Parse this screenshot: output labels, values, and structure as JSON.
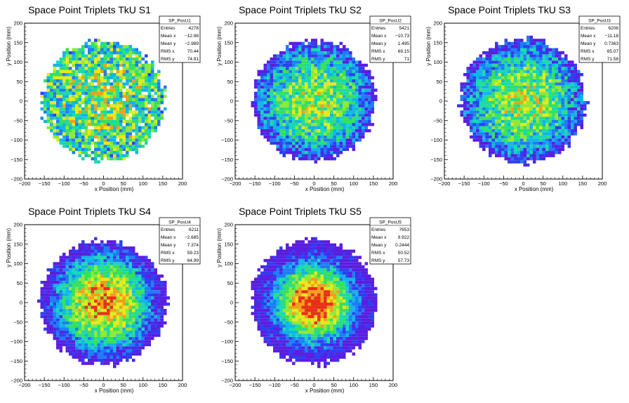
{
  "chart_data": [
    {
      "type": "heatmap",
      "title": "Space Point Triplets TkU S1",
      "xlabel": "x Position (mm)",
      "ylabel": "y Position (mm)",
      "xlim": [
        -200,
        200
      ],
      "ylim": [
        -200,
        200
      ],
      "xticks": [
        "−200",
        "−150",
        "−100",
        "−50",
        "0",
        "50",
        "100",
        "150",
        "200"
      ],
      "yticks": [
        "−200",
        "−150",
        "−100",
        "−50",
        "0",
        "50",
        "100",
        "150",
        "200"
      ],
      "footprint_radius_mm": 155,
      "density_profile": "flat",
      "stats": {
        "name": "SP_PosU1",
        "rows": [
          {
            "label": "Entries",
            "value": "4278"
          },
          {
            "label": "Mean x",
            "value": "−12.98"
          },
          {
            "label": "Mean y",
            "value": "−2.989"
          },
          {
            "label": "RMS x",
            "value": "70.44"
          },
          {
            "label": "RMS y",
            "value": "74.91"
          }
        ]
      }
    },
    {
      "type": "heatmap",
      "title": "Space Point Triplets TkU S2",
      "xlabel": "x Position (mm)",
      "ylabel": "y Position (mm)",
      "xlim": [
        -200,
        200
      ],
      "ylim": [
        -200,
        200
      ],
      "xticks": [
        "−200",
        "−150",
        "−100",
        "−50",
        "0",
        "50",
        "100",
        "150",
        "200"
      ],
      "yticks": [
        "−200",
        "−150",
        "−100",
        "−50",
        "0",
        "50",
        "100",
        "150",
        "200"
      ],
      "footprint_radius_mm": 155,
      "density_profile": "moderate",
      "stats": {
        "name": "SP_PosU2",
        "rows": [
          {
            "label": "Entries",
            "value": "5421"
          },
          {
            "label": "Mean x",
            "value": "−10.73"
          },
          {
            "label": "Mean y",
            "value": "1.495"
          },
          {
            "label": "RMS x",
            "value": "69.15"
          },
          {
            "label": "RMS y",
            "value": "71"
          }
        ]
      }
    },
    {
      "type": "heatmap",
      "title": "Space Point Triplets TkU S3",
      "xlabel": "x Position (mm)",
      "ylabel": "y Position (mm)",
      "xlim": [
        -200,
        200
      ],
      "ylim": [
        -200,
        200
      ],
      "xticks": [
        "−200",
        "−150",
        "−100",
        "−50",
        "0",
        "50",
        "100",
        "150",
        "200"
      ],
      "yticks": [
        "−200",
        "−150",
        "−100",
        "−50",
        "0",
        "50",
        "100",
        "150",
        "200"
      ],
      "footprint_radius_mm": 160,
      "density_profile": "moderate",
      "stats": {
        "name": "SP_PosU3",
        "rows": [
          {
            "label": "Entries",
            "value": "6206"
          },
          {
            "label": "Mean x",
            "value": "−11.18"
          },
          {
            "label": "Mean y",
            "value": "0.7363"
          },
          {
            "label": "RMS x",
            "value": "65.07"
          },
          {
            "label": "RMS y",
            "value": "71.58"
          }
        ]
      }
    },
    {
      "type": "heatmap",
      "title": "Space Point Triplets TkU S4",
      "xlabel": "x Position (mm)",
      "ylabel": "y Position (mm)",
      "xlim": [
        -200,
        200
      ],
      "ylim": [
        -200,
        200
      ],
      "xticks": [
        "−200",
        "−150",
        "−100",
        "−50",
        "0",
        "50",
        "100",
        "150",
        "200"
      ],
      "yticks": [
        "−200",
        "−150",
        "−100",
        "−50",
        "0",
        "50",
        "100",
        "150",
        "200"
      ],
      "footprint_radius_mm": 160,
      "density_profile": "peaked",
      "stats": {
        "name": "SP_PosU4",
        "rows": [
          {
            "label": "Entries",
            "value": "6211"
          },
          {
            "label": "Mean x",
            "value": "−2.685"
          },
          {
            "label": "Mean y",
            "value": "7.374"
          },
          {
            "label": "RMS x",
            "value": "59.23"
          },
          {
            "label": "RMS y",
            "value": "64.99"
          }
        ]
      }
    },
    {
      "type": "heatmap",
      "title": "Space Point Triplets TkU S5",
      "xlabel": "x Position (mm)",
      "ylabel": "y Position (mm)",
      "xlim": [
        -200,
        200
      ],
      "ylim": [
        -200,
        200
      ],
      "xticks": [
        "−200",
        "−150",
        "−100",
        "−50",
        "0",
        "50",
        "100",
        "150",
        "200"
      ],
      "yticks": [
        "−200",
        "−150",
        "−100",
        "−50",
        "0",
        "50",
        "100",
        "150",
        "200"
      ],
      "footprint_radius_mm": 160,
      "density_profile": "very-peaked",
      "stats": {
        "name": "SP_PosU5",
        "rows": [
          {
            "label": "Entries",
            "value": "7653"
          },
          {
            "label": "Mean x",
            "value": "9.922"
          },
          {
            "label": "Mean y",
            "value": "0.2444"
          },
          {
            "label": "RMS x",
            "value": "50.52"
          },
          {
            "label": "RMS y",
            "value": "57.73"
          }
        ]
      }
    }
  ],
  "colors": {
    "frame": "#000000",
    "background": "#ffffff",
    "palette": [
      "#5a1ee0",
      "#2f3ef0",
      "#1f7cf5",
      "#12b4e8",
      "#19d9b0",
      "#36e05a",
      "#8ee83a",
      "#e8e81a",
      "#f0a01a",
      "#e83018"
    ]
  }
}
